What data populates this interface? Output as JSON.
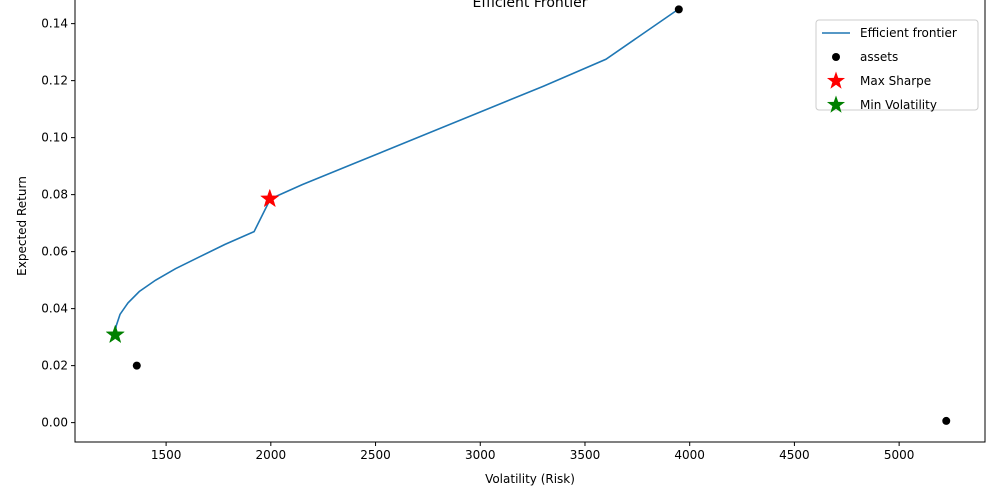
{
  "chart_data": {
    "type": "scatter",
    "title": "Efficient Frontier",
    "xlabel": "Volatility (Risk)",
    "ylabel": "Expected Return",
    "xlim": [
      1065,
      5410
    ],
    "ylim": [
      -0.0068,
      0.1518
    ],
    "xticks": [
      1500,
      2000,
      2500,
      3000,
      3500,
      4000,
      4500,
      5000
    ],
    "yticks": [
      0.0,
      0.02,
      0.04,
      0.06,
      0.08,
      0.1,
      0.12,
      0.14
    ],
    "xtick_labels": [
      "1500",
      "2000",
      "2500",
      "3000",
      "3500",
      "4000",
      "4500",
      "5000"
    ],
    "ytick_labels": [
      "0.00",
      "0.02",
      "0.04",
      "0.06",
      "0.08",
      "0.10",
      "0.12",
      "0.14"
    ],
    "grid": false,
    "legend_position": "top-right",
    "series": [
      {
        "name": "Efficient frontier",
        "kind": "line",
        "color": "#1f77b4",
        "points": [
          [
            1256,
            0.031
          ],
          [
            1262,
            0.034
          ],
          [
            1280,
            0.038
          ],
          [
            1318,
            0.042
          ],
          [
            1372,
            0.046
          ],
          [
            1450,
            0.05
          ],
          [
            1545,
            0.054
          ],
          [
            1655,
            0.058
          ],
          [
            1780,
            0.0625
          ],
          [
            1920,
            0.067
          ],
          [
            1998,
            0.0785
          ],
          [
            2150,
            0.0835
          ],
          [
            2400,
            0.091
          ],
          [
            2700,
            0.1
          ],
          [
            3000,
            0.109
          ],
          [
            3300,
            0.118
          ],
          [
            3600,
            0.1275
          ],
          [
            3945,
            0.145
          ]
        ]
      },
      {
        "name": "assets",
        "kind": "scatter",
        "color": "#000000",
        "points": [
          [
            1360,
            0.02
          ],
          [
            3948,
            0.145
          ],
          [
            5225,
            0.0006
          ]
        ]
      },
      {
        "name": "Max Sharpe",
        "kind": "star",
        "color": "#ff0000",
        "points": [
          [
            1995,
            0.0785
          ]
        ]
      },
      {
        "name": "Min Volatility",
        "kind": "star",
        "color": "#008000",
        "points": [
          [
            1257,
            0.0308
          ]
        ]
      }
    ]
  }
}
